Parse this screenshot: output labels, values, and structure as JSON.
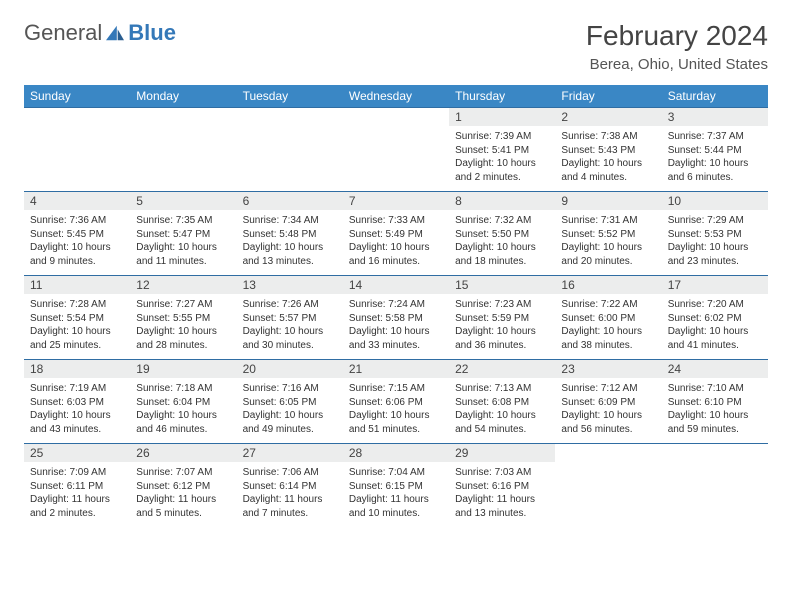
{
  "logo": {
    "text1": "General",
    "text2": "Blue"
  },
  "title": "February 2024",
  "location": "Berea, Ohio, United States",
  "colors": {
    "header_bg": "#3a87c5",
    "header_text": "#ffffff",
    "row_divider": "#2f6da3",
    "daynum_bg": "#eceded",
    "text": "#333333",
    "logo_accent": "#3478b8",
    "page_bg": "#ffffff"
  },
  "typography": {
    "title_fontsize": 28,
    "location_fontsize": 15,
    "weekday_fontsize": 12,
    "daynum_fontsize": 12,
    "body_fontsize": 10
  },
  "weekdays": [
    "Sunday",
    "Monday",
    "Tuesday",
    "Wednesday",
    "Thursday",
    "Friday",
    "Saturday"
  ],
  "weeks": [
    [
      {
        "empty": true
      },
      {
        "empty": true
      },
      {
        "empty": true
      },
      {
        "empty": true
      },
      {
        "n": "1",
        "sunrise": "Sunrise: 7:39 AM",
        "sunset": "Sunset: 5:41 PM",
        "daylight": "Daylight: 10 hours and 2 minutes."
      },
      {
        "n": "2",
        "sunrise": "Sunrise: 7:38 AM",
        "sunset": "Sunset: 5:43 PM",
        "daylight": "Daylight: 10 hours and 4 minutes."
      },
      {
        "n": "3",
        "sunrise": "Sunrise: 7:37 AM",
        "sunset": "Sunset: 5:44 PM",
        "daylight": "Daylight: 10 hours and 6 minutes."
      }
    ],
    [
      {
        "n": "4",
        "sunrise": "Sunrise: 7:36 AM",
        "sunset": "Sunset: 5:45 PM",
        "daylight": "Daylight: 10 hours and 9 minutes."
      },
      {
        "n": "5",
        "sunrise": "Sunrise: 7:35 AM",
        "sunset": "Sunset: 5:47 PM",
        "daylight": "Daylight: 10 hours and 11 minutes."
      },
      {
        "n": "6",
        "sunrise": "Sunrise: 7:34 AM",
        "sunset": "Sunset: 5:48 PM",
        "daylight": "Daylight: 10 hours and 13 minutes."
      },
      {
        "n": "7",
        "sunrise": "Sunrise: 7:33 AM",
        "sunset": "Sunset: 5:49 PM",
        "daylight": "Daylight: 10 hours and 16 minutes."
      },
      {
        "n": "8",
        "sunrise": "Sunrise: 7:32 AM",
        "sunset": "Sunset: 5:50 PM",
        "daylight": "Daylight: 10 hours and 18 minutes."
      },
      {
        "n": "9",
        "sunrise": "Sunrise: 7:31 AM",
        "sunset": "Sunset: 5:52 PM",
        "daylight": "Daylight: 10 hours and 20 minutes."
      },
      {
        "n": "10",
        "sunrise": "Sunrise: 7:29 AM",
        "sunset": "Sunset: 5:53 PM",
        "daylight": "Daylight: 10 hours and 23 minutes."
      }
    ],
    [
      {
        "n": "11",
        "sunrise": "Sunrise: 7:28 AM",
        "sunset": "Sunset: 5:54 PM",
        "daylight": "Daylight: 10 hours and 25 minutes."
      },
      {
        "n": "12",
        "sunrise": "Sunrise: 7:27 AM",
        "sunset": "Sunset: 5:55 PM",
        "daylight": "Daylight: 10 hours and 28 minutes."
      },
      {
        "n": "13",
        "sunrise": "Sunrise: 7:26 AM",
        "sunset": "Sunset: 5:57 PM",
        "daylight": "Daylight: 10 hours and 30 minutes."
      },
      {
        "n": "14",
        "sunrise": "Sunrise: 7:24 AM",
        "sunset": "Sunset: 5:58 PM",
        "daylight": "Daylight: 10 hours and 33 minutes."
      },
      {
        "n": "15",
        "sunrise": "Sunrise: 7:23 AM",
        "sunset": "Sunset: 5:59 PM",
        "daylight": "Daylight: 10 hours and 36 minutes."
      },
      {
        "n": "16",
        "sunrise": "Sunrise: 7:22 AM",
        "sunset": "Sunset: 6:00 PM",
        "daylight": "Daylight: 10 hours and 38 minutes."
      },
      {
        "n": "17",
        "sunrise": "Sunrise: 7:20 AM",
        "sunset": "Sunset: 6:02 PM",
        "daylight": "Daylight: 10 hours and 41 minutes."
      }
    ],
    [
      {
        "n": "18",
        "sunrise": "Sunrise: 7:19 AM",
        "sunset": "Sunset: 6:03 PM",
        "daylight": "Daylight: 10 hours and 43 minutes."
      },
      {
        "n": "19",
        "sunrise": "Sunrise: 7:18 AM",
        "sunset": "Sunset: 6:04 PM",
        "daylight": "Daylight: 10 hours and 46 minutes."
      },
      {
        "n": "20",
        "sunrise": "Sunrise: 7:16 AM",
        "sunset": "Sunset: 6:05 PM",
        "daylight": "Daylight: 10 hours and 49 minutes."
      },
      {
        "n": "21",
        "sunrise": "Sunrise: 7:15 AM",
        "sunset": "Sunset: 6:06 PM",
        "daylight": "Daylight: 10 hours and 51 minutes."
      },
      {
        "n": "22",
        "sunrise": "Sunrise: 7:13 AM",
        "sunset": "Sunset: 6:08 PM",
        "daylight": "Daylight: 10 hours and 54 minutes."
      },
      {
        "n": "23",
        "sunrise": "Sunrise: 7:12 AM",
        "sunset": "Sunset: 6:09 PM",
        "daylight": "Daylight: 10 hours and 56 minutes."
      },
      {
        "n": "24",
        "sunrise": "Sunrise: 7:10 AM",
        "sunset": "Sunset: 6:10 PM",
        "daylight": "Daylight: 10 hours and 59 minutes."
      }
    ],
    [
      {
        "n": "25",
        "sunrise": "Sunrise: 7:09 AM",
        "sunset": "Sunset: 6:11 PM",
        "daylight": "Daylight: 11 hours and 2 minutes."
      },
      {
        "n": "26",
        "sunrise": "Sunrise: 7:07 AM",
        "sunset": "Sunset: 6:12 PM",
        "daylight": "Daylight: 11 hours and 5 minutes."
      },
      {
        "n": "27",
        "sunrise": "Sunrise: 7:06 AM",
        "sunset": "Sunset: 6:14 PM",
        "daylight": "Daylight: 11 hours and 7 minutes."
      },
      {
        "n": "28",
        "sunrise": "Sunrise: 7:04 AM",
        "sunset": "Sunset: 6:15 PM",
        "daylight": "Daylight: 11 hours and 10 minutes."
      },
      {
        "n": "29",
        "sunrise": "Sunrise: 7:03 AM",
        "sunset": "Sunset: 6:16 PM",
        "daylight": "Daylight: 11 hours and 13 minutes."
      },
      {
        "empty": true
      },
      {
        "empty": true
      }
    ]
  ]
}
